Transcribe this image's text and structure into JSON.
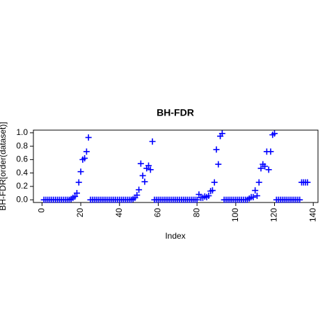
{
  "chart_data": {
    "type": "scatter",
    "title": "BH-FDR",
    "x_label": "Index",
    "y_label": "BH-FDR[order(dataset)]",
    "color": "#0000ff",
    "marker": "plus",
    "x": [
      1,
      2,
      3,
      4,
      5,
      6,
      7,
      8,
      9,
      10,
      11,
      12,
      13,
      14,
      15,
      16,
      17,
      18,
      19,
      20,
      21,
      22,
      23,
      24,
      25,
      26,
      27,
      28,
      29,
      30,
      31,
      32,
      33,
      34,
      35,
      36,
      37,
      38,
      39,
      40,
      41,
      42,
      43,
      44,
      45,
      46,
      47,
      48,
      49,
      50,
      51,
      52,
      53,
      54,
      55,
      56,
      57,
      58,
      59,
      60,
      61,
      62,
      63,
      64,
      65,
      66,
      67,
      68,
      69,
      70,
      71,
      72,
      73,
      74,
      75,
      76,
      77,
      78,
      79,
      80,
      81,
      82,
      83,
      84,
      85,
      86,
      87,
      88,
      89,
      90,
      91,
      92,
      93,
      94,
      95,
      96,
      97,
      98,
      99,
      100,
      101,
      102,
      103,
      104,
      105,
      106,
      107,
      108,
      109,
      110,
      111,
      112,
      113,
      114,
      115,
      116,
      117,
      118,
      119,
      120,
      121,
      122,
      123,
      124,
      125,
      126,
      127,
      128,
      129,
      130,
      131,
      132,
      133,
      134,
      135,
      136,
      137
    ],
    "values": [
      0,
      0,
      0,
      0,
      0,
      0,
      0,
      0,
      0,
      0,
      0,
      0,
      0,
      0,
      0.01,
      0.03,
      0.05,
      0.1,
      0.26,
      0.42,
      0.6,
      0.62,
      0.72,
      0.93,
      0,
      0,
      0,
      0,
      0,
      0,
      0,
      0,
      0,
      0,
      0,
      0,
      0,
      0,
      0,
      0,
      0,
      0,
      0,
      0,
      0,
      0,
      0.01,
      0.03,
      0.07,
      0.15,
      0.54,
      0.36,
      0.27,
      0.47,
      0.51,
      0.45,
      0.87,
      0,
      0,
      0,
      0,
      0,
      0,
      0,
      0,
      0,
      0,
      0,
      0,
      0,
      0,
      0,
      0,
      0,
      0,
      0,
      0,
      0,
      0,
      0,
      0.08,
      0.03,
      0.03,
      0.05,
      0.04,
      0.06,
      0.13,
      0.14,
      0.26,
      0.75,
      0.53,
      0.95,
      0.99,
      0,
      0,
      0,
      0,
      0,
      0,
      0,
      0,
      0,
      0,
      0,
      0,
      0,
      0.02,
      0.04,
      0.04,
      0.14,
      0.06,
      0.26,
      0.47,
      0.53,
      0.5,
      0.72,
      0.45,
      0.72,
      0.97,
      0.99,
      0,
      0,
      0,
      0,
      0,
      0,
      0,
      0,
      0,
      0,
      0,
      0,
      0,
      0.26,
      0.26,
      0.26,
      0.26
    ],
    "xlim": [
      -4.44,
      142.44
    ],
    "ylim": [
      -0.04,
      1.04
    ],
    "xticks": [
      0,
      20,
      40,
      60,
      80,
      100,
      120,
      140
    ],
    "yticks": [
      {
        "value": 0,
        "label": "0.0"
      },
      {
        "value": 0.2,
        "label": "0.2"
      },
      {
        "value": 0.4,
        "label": "0.4"
      },
      {
        "value": 0.6,
        "label": "0.6"
      },
      {
        "value": 0.8,
        "label": "0.8"
      },
      {
        "value": 1,
        "label": "1.0"
      }
    ]
  }
}
